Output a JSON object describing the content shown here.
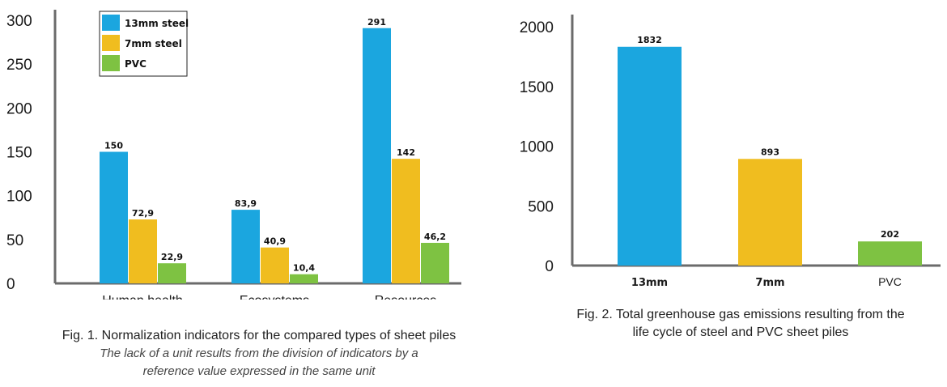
{
  "chart_data": [
    {
      "type": "bar",
      "categories": [
        "Human health",
        "Ecosystems",
        "Resources"
      ],
      "series": [
        {
          "name": "13mm steel",
          "color": "#1ba6df",
          "values": [
            150,
            83.9,
            291
          ],
          "labels": [
            "150",
            "83,9",
            "291"
          ]
        },
        {
          "name": "7mm steel",
          "color": "#f0bd1f",
          "values": [
            72.9,
            40.9,
            142
          ],
          "labels": [
            "72,9",
            "40,9",
            "142"
          ]
        },
        {
          "name": "PVC",
          "color": "#7ec242",
          "values": [
            22.9,
            10.4,
            46.2
          ],
          "labels": [
            "22,9",
            "10,4",
            "46,2"
          ]
        }
      ],
      "yticks": [
        0,
        50,
        100,
        150,
        200,
        250,
        300
      ],
      "ylim": [
        0,
        300
      ],
      "legend": "top-left",
      "grid": false,
      "caption_title": "Fig. 1. Normalization indicators for the compared types of sheet piles",
      "caption_note": "The lack of a unit results from the division of indicators by a reference value expressed in the same unit"
    },
    {
      "type": "bar",
      "categories": [
        "13mm",
        "7mm",
        "PVC"
      ],
      "values": [
        1832,
        893,
        202
      ],
      "labels": [
        "1832",
        "893",
        "202"
      ],
      "colors": [
        "#1ba6df",
        "#f0bd1f",
        "#7ec242"
      ],
      "yticks": [
        0,
        500,
        1000,
        1500,
        2000
      ],
      "ylim": [
        0,
        2000
      ],
      "grid": false,
      "caption_title": "Fig. 2. Total greenhouse gas emissions resulting from the life cycle of steel and PVC sheet piles"
    }
  ]
}
